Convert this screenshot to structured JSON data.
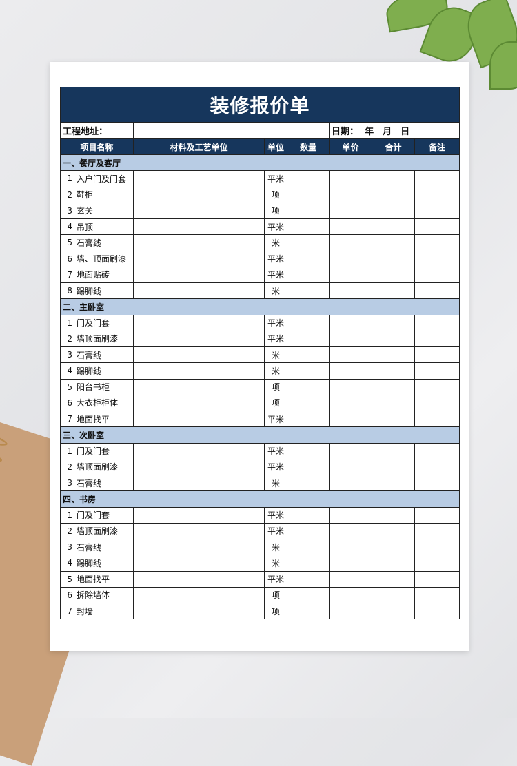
{
  "title": "装修报价单",
  "address_label": "工程地址：",
  "date_label": "日期：",
  "date_parts": "年　月　日",
  "headers": [
    "项目名称",
    "材料及工艺单位",
    "单位",
    "数量",
    "单价",
    "合计",
    "备注"
  ],
  "colors": {
    "header_bg": "#16365c",
    "section_bg": "#b8cce4"
  },
  "sections": [
    {
      "title": "一、餐厅及客厅",
      "items": [
        [
          "1",
          "入户门及门套",
          "平米"
        ],
        [
          "2",
          "鞋柜",
          "项"
        ],
        [
          "3",
          "玄关",
          "项"
        ],
        [
          "4",
          "吊顶",
          "平米"
        ],
        [
          "5",
          "石膏线",
          "米"
        ],
        [
          "6",
          "墙、顶面刷漆",
          "平米"
        ],
        [
          "7",
          "地面贴砖",
          "平米"
        ],
        [
          "8",
          "踢脚线",
          "米"
        ]
      ]
    },
    {
      "title": "二、主卧室",
      "items": [
        [
          "1",
          "门及门套",
          "平米"
        ],
        [
          "2",
          "墙顶面刷漆",
          "平米"
        ],
        [
          "3",
          "石膏线",
          "米"
        ],
        [
          "4",
          "踢脚线",
          "米"
        ],
        [
          "5",
          "阳台书柜",
          "项"
        ],
        [
          "6",
          "大衣柜柜体",
          "项"
        ],
        [
          "7",
          "地面找平",
          "平米"
        ]
      ]
    },
    {
      "title": "三、次卧室",
      "items": [
        [
          "1",
          "门及门套",
          "平米"
        ],
        [
          "2",
          "墙顶面刷漆",
          "平米"
        ],
        [
          "3",
          "石膏线",
          "米"
        ]
      ]
    },
    {
      "title": "四、书房",
      "items": [
        [
          "1",
          "门及门套",
          "平米"
        ],
        [
          "2",
          "墙顶面刷漆",
          "平米"
        ],
        [
          "3",
          "石膏线",
          "米"
        ],
        [
          "4",
          "踢脚线",
          "米"
        ],
        [
          "5",
          "地面找平",
          "平米"
        ],
        [
          "6",
          "拆除墙体",
          "项"
        ],
        [
          "7",
          "封墙",
          "项"
        ]
      ]
    }
  ]
}
